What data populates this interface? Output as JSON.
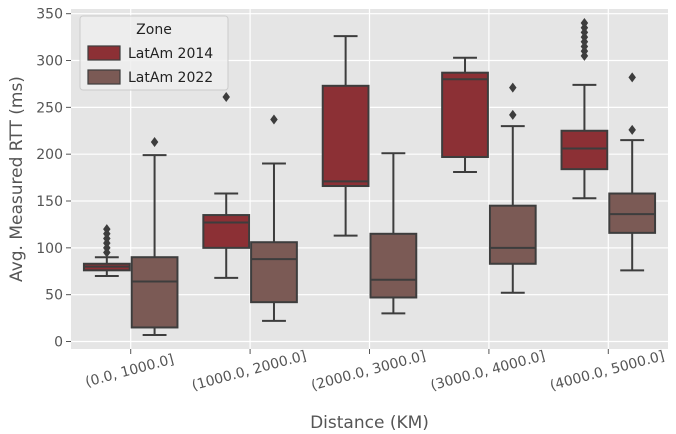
{
  "chart_data": {
    "type": "box",
    "xlabel": "Distance (KM)",
    "ylabel": "Avg. Measured RTT (ms)",
    "ylim": [
      -8,
      355
    ],
    "yticks": [
      0,
      50,
      100,
      150,
      200,
      250,
      300,
      350
    ],
    "grid": true,
    "categories": [
      "(0.0, 1000.0]",
      "(1000.0, 2000.0]",
      "(2000.0, 3000.0]",
      "(3000.0, 4000.0]",
      "(4000.0, 5000.0]"
    ],
    "legend": {
      "title": "Zone",
      "position": "top-left",
      "entries": [
        "LatAm 2014",
        "LatAm 2022"
      ]
    },
    "colors": {
      "LatAm 2014": "#8c3035",
      "LatAm 2022": "#7b5a55",
      "background": "#e5e5e5",
      "grid": "#ffffff",
      "line": "#3d3d3d"
    },
    "series": [
      {
        "name": "LatAm 2014",
        "boxes": [
          {
            "whisker_low": 70,
            "q1": 76,
            "median": 80,
            "q3": 83,
            "whisker_high": 90,
            "outliers": [
              95,
              100,
              105,
              110,
              115,
              120
            ]
          },
          {
            "whisker_low": 68,
            "q1": 100,
            "median": 127,
            "q3": 135,
            "whisker_high": 158,
            "outliers": [
              261
            ]
          },
          {
            "whisker_low": 113,
            "q1": 166,
            "median": 171,
            "q3": 273,
            "whisker_high": 326,
            "outliers": []
          },
          {
            "whisker_low": 181,
            "q1": 197,
            "median": 280,
            "q3": 287,
            "whisker_high": 303,
            "outliers": []
          },
          {
            "whisker_low": 153,
            "q1": 184,
            "median": 206,
            "q3": 225,
            "whisker_high": 274,
            "outliers": [
              305,
              310,
              315,
              320,
              325,
              330,
              335,
              340
            ]
          }
        ]
      },
      {
        "name": "LatAm 2022",
        "boxes": [
          {
            "whisker_low": 7,
            "q1": 15,
            "median": 64,
            "q3": 90,
            "whisker_high": 199,
            "outliers": [
              213
            ]
          },
          {
            "whisker_low": 22,
            "q1": 42,
            "median": 88,
            "q3": 106,
            "whisker_high": 190,
            "outliers": [
              237
            ]
          },
          {
            "whisker_low": 30,
            "q1": 47,
            "median": 66,
            "q3": 115,
            "whisker_high": 201,
            "outliers": []
          },
          {
            "whisker_low": 52,
            "q1": 83,
            "median": 100,
            "q3": 145,
            "whisker_high": 230,
            "outliers": [
              242,
              271
            ]
          },
          {
            "whisker_low": 76,
            "q1": 116,
            "median": 136,
            "q3": 158,
            "whisker_high": 215,
            "outliers": [
              226,
              282
            ]
          }
        ]
      }
    ]
  }
}
